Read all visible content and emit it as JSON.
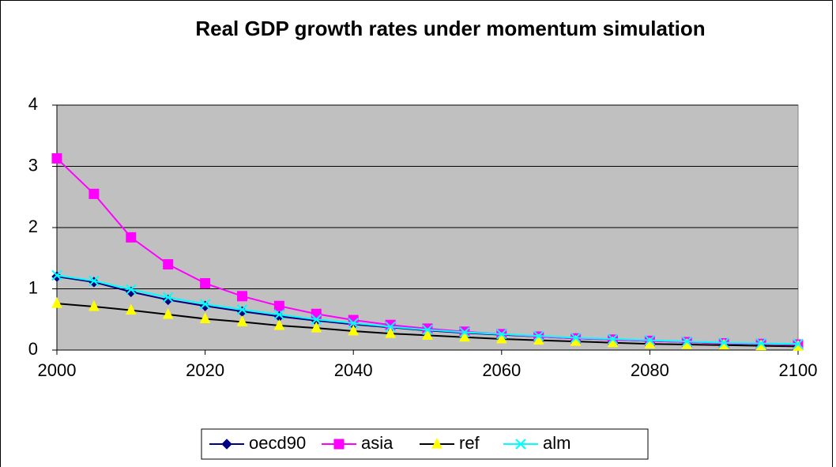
{
  "chart_data": {
    "type": "line",
    "title": "Real GDP growth rates under momentum simulation",
    "x": [
      2000,
      2005,
      2010,
      2015,
      2020,
      2025,
      2030,
      2035,
      2040,
      2045,
      2050,
      2055,
      2060,
      2065,
      2070,
      2075,
      2080,
      2085,
      2090,
      2095,
      2100
    ],
    "xlim": [
      2000,
      2100
    ],
    "xticks": [
      2000,
      2020,
      2040,
      2060,
      2080,
      2100
    ],
    "ylim": [
      0,
      4
    ],
    "yticks": [
      0,
      1,
      2,
      3,
      4
    ],
    "grid": true,
    "legend": "bottom",
    "series": [
      {
        "name": "oecd90",
        "color": "#000080",
        "marker": "diamond",
        "marker_color": "#000080",
        "values": [
          1.2,
          1.11,
          0.95,
          0.82,
          0.72,
          0.63,
          0.55,
          0.48,
          0.42,
          0.37,
          0.32,
          0.28,
          0.25,
          0.22,
          0.19,
          0.17,
          0.15,
          0.13,
          0.11,
          0.1,
          0.09
        ]
      },
      {
        "name": "asia",
        "color": "#ff00ff",
        "marker": "square",
        "marker_color": "#ff00ff",
        "values": [
          3.13,
          2.55,
          1.84,
          1.4,
          1.09,
          0.88,
          0.72,
          0.59,
          0.49,
          0.41,
          0.35,
          0.3,
          0.26,
          0.22,
          0.19,
          0.17,
          0.15,
          0.13,
          0.11,
          0.1,
          0.09
        ]
      },
      {
        "name": "ref",
        "color": "#000000",
        "marker": "triangle",
        "marker_color": "#ffff00",
        "values": [
          0.76,
          0.71,
          0.65,
          0.58,
          0.51,
          0.46,
          0.4,
          0.36,
          0.31,
          0.27,
          0.24,
          0.21,
          0.18,
          0.16,
          0.14,
          0.12,
          0.1,
          0.09,
          0.08,
          0.07,
          0.06
        ]
      },
      {
        "name": "alm",
        "color": "#00ffff",
        "marker": "x",
        "marker_color": "#00ffff",
        "values": [
          1.22,
          1.13,
          0.99,
          0.86,
          0.75,
          0.66,
          0.58,
          0.5,
          0.44,
          0.38,
          0.33,
          0.29,
          0.26,
          0.23,
          0.2,
          0.18,
          0.16,
          0.14,
          0.12,
          0.11,
          0.1
        ]
      }
    ]
  }
}
